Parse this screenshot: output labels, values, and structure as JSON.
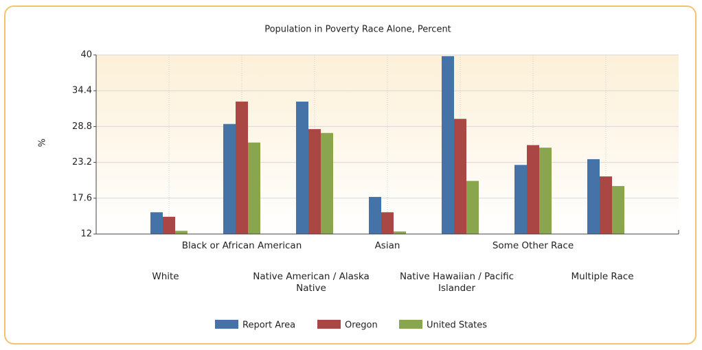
{
  "chart_data": {
    "type": "bar",
    "title": "Population in Poverty Race Alone, Percent",
    "y_label": "%",
    "categories": [
      "White",
      "Black or African American",
      "Native American / Alaska Native",
      "Asian",
      "Native Hawaiian / Pacific Islander",
      "Some Other Race",
      "Multiple Race"
    ],
    "series": [
      {
        "name": "Report Area",
        "color": "#4572a7",
        "values": [
          15.4,
          29.2,
          32.7,
          17.8,
          39.8,
          22.8,
          23.7
        ]
      },
      {
        "name": "Oregon",
        "color": "#aa4643",
        "values": [
          14.7,
          32.7,
          28.4,
          15.4,
          30.0,
          25.9,
          21.0
        ]
      },
      {
        "name": "United States",
        "color": "#89a54e",
        "values": [
          12.5,
          26.3,
          27.8,
          12.4,
          20.3,
          25.5,
          19.5
        ]
      }
    ],
    "ylim": [
      12,
      40
    ],
    "yticks": [
      12,
      17.6,
      23.2,
      28.8,
      34.4,
      40
    ],
    "grid": true,
    "legend": "bottom"
  }
}
